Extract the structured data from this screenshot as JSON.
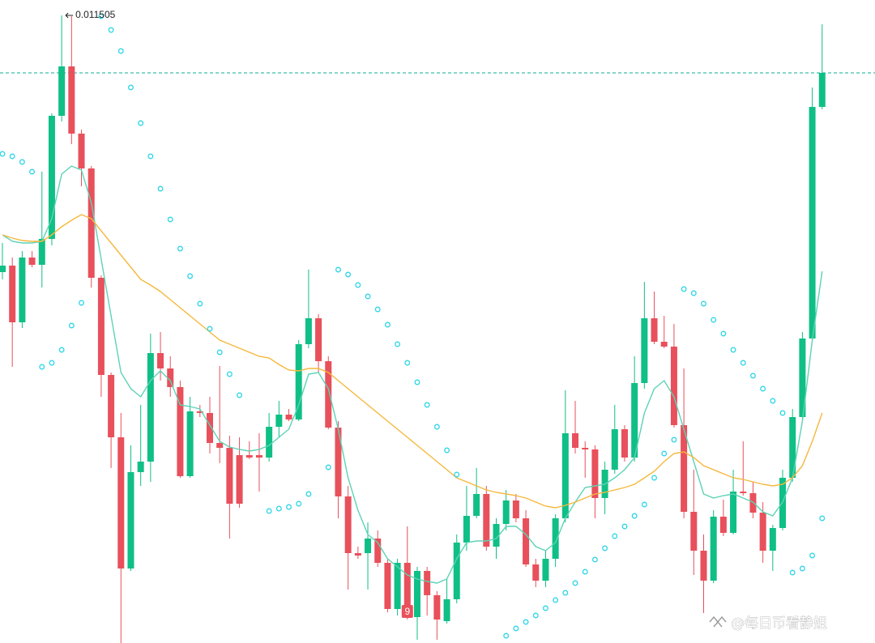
{
  "chart_data": {
    "type": "candlestick",
    "up_color": "#0fbf86",
    "down_color": "#e8505b",
    "ylim": [
      0.00763,
      0.0116
    ],
    "open": [
      0.00992,
      0.00996,
      0.00961,
      0.01001,
      0.009965,
      0.010125,
      0.010885,
      0.01119,
      0.010775,
      0.01056,
      0.009885,
      0.009285,
      0.0089,
      0.00809,
      0.008685,
      0.00875,
      0.00942,
      0.009325,
      0.00921,
      0.00866,
      0.00906,
      0.00905,
      0.008865,
      0.008835,
      0.00879,
      0.00879,
      0.00879,
      0.008775,
      0.008965,
      0.00904,
      0.00901,
      0.009475,
      0.009635,
      0.00937,
      0.00896,
      0.008535,
      0.008185,
      0.008185,
      0.008275,
      0.008125,
      0.00784,
      0.008125,
      0.00779,
      0.008075,
      0.007925,
      0.007765,
      0.0079,
      0.00825,
      0.008415,
      0.00855,
      0.008225,
      0.008365,
      0.00851,
      0.0084,
      0.008115,
      0.008015,
      0.00815,
      0.0084,
      0.008925,
      0.008835,
      0.008825,
      0.008525,
      0.0087,
      0.00895,
      0.008775,
      0.009235,
      0.009635,
      0.00949,
      0.00946,
      0.008975,
      0.00844,
      0.0082,
      0.008015,
      0.00841,
      0.00831,
      0.008565,
      0.008555,
      0.008435,
      0.0082,
      0.00834,
      0.00865,
      0.009025,
      0.00951,
      0.01094
    ],
    "high": [
      0.0101,
      0.01001,
      0.01005,
      0.01005,
      0.01054,
      0.0109,
      0.011505,
      0.0115,
      0.0108,
      0.010575,
      0.0099,
      0.0093,
      0.00905,
      0.00885,
      0.0091,
      0.00954,
      0.00955,
      0.0094,
      0.00925,
      0.00915,
      0.0091,
      0.00915,
      0.00934,
      0.00891,
      0.0089,
      0.008875,
      0.008925,
      0.00905,
      0.009125,
      0.009075,
      0.0095,
      0.009935,
      0.00966,
      0.0094,
      0.009,
      0.0086,
      0.008225,
      0.008375,
      0.008325,
      0.00815,
      0.00815,
      0.00835,
      0.0081,
      0.0081,
      0.00795,
      0.008025,
      0.0083,
      0.0086,
      0.00871,
      0.0086,
      0.0084,
      0.008575,
      0.00855,
      0.00845,
      0.00815,
      0.0082,
      0.008425,
      0.00919,
      0.009125,
      0.008875,
      0.00885,
      0.00875,
      0.0091,
      0.008975,
      0.0094,
      0.00986,
      0.0098,
      0.00965,
      0.0096,
      0.009325,
      0.0087,
      0.0083,
      0.00845,
      0.008515,
      0.0087,
      0.008875,
      0.008625,
      0.0085,
      0.00836,
      0.0087,
      0.009075,
      0.00955,
      0.01106,
      0.01145
    ],
    "low": [
      0.009875,
      0.009335,
      0.009575,
      0.00995,
      0.009825,
      0.010085,
      0.01085,
      0.01071,
      0.01045,
      0.009825,
      0.00915,
      0.00871,
      0.00763,
      0.008075,
      0.0086,
      0.008625,
      0.00925,
      0.00915,
      0.00865,
      0.00865,
      0.009025,
      0.0088,
      0.00874,
      0.008275,
      0.008465,
      0.008765,
      0.008565,
      0.00875,
      0.0089,
      0.009,
      0.009,
      0.00945,
      0.0093,
      0.00895,
      0.0084,
      0.00796,
      0.00815,
      0.00796,
      0.0081,
      0.00782,
      0.0078,
      0.007775,
      0.00765,
      0.0078,
      0.00765,
      0.00775,
      0.007875,
      0.0082,
      0.0084,
      0.0082,
      0.00815,
      0.008325,
      0.008375,
      0.0081,
      0.007975,
      0.007975,
      0.0081,
      0.008375,
      0.0088,
      0.00865,
      0.0084,
      0.008425,
      0.008675,
      0.00875,
      0.00875,
      0.0092,
      0.009475,
      0.00945,
      0.00896,
      0.0084,
      0.00805,
      0.007815,
      0.008,
      0.00829,
      0.0083,
      0.00854,
      0.0084,
      0.008125,
      0.008075,
      0.008325,
      0.008625,
      0.009,
      0.0095,
      0.010925
    ],
    "close": [
      0.00996,
      0.00961,
      0.01001,
      0.009965,
      0.010125,
      0.010885,
      0.01119,
      0.010775,
      0.01056,
      0.009885,
      0.009285,
      0.0089,
      0.00809,
      0.008685,
      0.00875,
      0.00942,
      0.009325,
      0.00921,
      0.00866,
      0.00906,
      0.00905,
      0.008865,
      0.008835,
      0.00849,
      0.00849,
      0.008775,
      0.008775,
      0.008965,
      0.00904,
      0.00901,
      0.009475,
      0.009635,
      0.00937,
      0.00896,
      0.008535,
      0.008185,
      0.00817,
      0.008275,
      0.008125,
      0.00784,
      0.008125,
      0.00779,
      0.008075,
      0.007925,
      0.007775,
      0.0079,
      0.00825,
      0.008415,
      0.00855,
      0.008225,
      0.008365,
      0.00851,
      0.0084,
      0.008115,
      0.008015,
      0.00815,
      0.0084,
      0.008925,
      0.008835,
      0.008825,
      0.008525,
      0.0087,
      0.00895,
      0.008775,
      0.009235,
      0.009635,
      0.00949,
      0.00946,
      0.008975,
      0.00844,
      0.0082,
      0.008015,
      0.00841,
      0.00831,
      0.008565,
      0.008555,
      0.008435,
      0.0082,
      0.00834,
      0.00865,
      0.009025,
      0.00951,
      0.01094,
      0.01115
    ],
    "lines": [
      {
        "color": "#5dd3b6",
        "values": [
          0.01015,
          0.01011,
          0.0101,
          0.0101,
          0.01011,
          0.01025,
          0.010525,
          0.010575,
          0.01055,
          0.01035,
          0.01,
          0.00965,
          0.0093,
          0.0092,
          0.00915,
          0.00925,
          0.00931,
          0.00925,
          0.0091,
          0.00909,
          0.009075,
          0.008975,
          0.008875,
          0.00884,
          0.008825,
          0.008815,
          0.008825,
          0.00885,
          0.0089,
          0.00895,
          0.0091,
          0.00929,
          0.0093,
          0.0092,
          0.00895,
          0.00865,
          0.00845,
          0.0083,
          0.00825,
          0.00815,
          0.0081,
          0.00805,
          0.008025,
          0.00801,
          0.008,
          0.008025,
          0.00815,
          0.00825,
          0.00826,
          0.00826,
          0.008275,
          0.00835,
          0.00835,
          0.0083,
          0.008225,
          0.0082,
          0.00825,
          0.0084,
          0.0085,
          0.00859,
          0.0086,
          0.00861,
          0.00865,
          0.0087,
          0.008775,
          0.00905,
          0.0092,
          0.00925,
          0.00915,
          0.00895,
          0.00875,
          0.00855,
          0.008525,
          0.00854,
          0.00855,
          0.008525,
          0.0085,
          0.00844,
          0.008415,
          0.0085,
          0.00865,
          0.009,
          0.0095,
          0.009925
        ]
      },
      {
        "color": "#f5b83d",
        "values": [
          0.01015,
          0.01013,
          0.010115,
          0.01011,
          0.01011,
          0.01015,
          0.0102,
          0.01024,
          0.010275,
          0.01025,
          0.010175,
          0.0101,
          0.010025,
          0.00995,
          0.009875,
          0.00984,
          0.0098,
          0.00975,
          0.0097,
          0.00965,
          0.0096,
          0.00955,
          0.0095,
          0.009475,
          0.00945,
          0.009425,
          0.0094,
          0.00939,
          0.00935,
          0.009315,
          0.00931,
          0.009325,
          0.009325,
          0.0093,
          0.00925,
          0.0092,
          0.00915,
          0.0091,
          0.00905,
          0.009,
          0.00895,
          0.0089,
          0.00885,
          0.0088,
          0.00875,
          0.0087,
          0.00865,
          0.008625,
          0.0086,
          0.008575,
          0.00856,
          0.00855,
          0.00854,
          0.008525,
          0.0085,
          0.008475,
          0.008465,
          0.00848,
          0.0085,
          0.008525,
          0.00855,
          0.00856,
          0.008575,
          0.00859,
          0.00861,
          0.00865,
          0.00869,
          0.00875,
          0.0088,
          0.00881,
          0.008775,
          0.008725,
          0.0087,
          0.008675,
          0.00865,
          0.00864,
          0.008625,
          0.00861,
          0.0086,
          0.00861,
          0.00865,
          0.008725,
          0.008875,
          0.00905
        ]
      }
    ],
    "sar": {
      "color": "#2fd6e8",
      "values": [
        0.01065,
        0.010635,
        0.0106,
        0.01054,
        0.009335,
        0.00936,
        0.00944,
        0.00959,
        0.00973,
        null,
        0.0115,
        0.011415,
        0.011285,
        0.01106,
        0.01084,
        0.010635,
        0.010435,
        0.010245,
        0.010065,
        0.009895,
        0.009725,
        0.00957,
        0.009425,
        0.00929,
        0.00916,
        null,
        null,
        0.008445,
        0.00846,
        0.00847,
        0.00849,
        0.00855,
        null,
        0.008715,
        0.009935,
        0.009905,
        0.00984,
        0.00977,
        0.00969,
        0.009595,
        0.009475,
        0.00936,
        0.00924,
        0.0091,
        0.008965,
        0.00882,
        0.00867,
        null,
        null,
        null,
        null,
        0.007675,
        0.00772,
        0.00776,
        0.0078,
        0.007845,
        0.007895,
        0.00794,
        0.008,
        0.00807,
        0.008145,
        0.008215,
        0.00829,
        0.00835,
        0.008415,
        0.008485,
        0.00865,
        0.0088,
        0.008885,
        0.009815,
        0.00979,
        0.009725,
        0.009625,
        0.00954,
        0.00944,
        0.00936,
        0.00928,
        0.0092,
        0.009125,
        0.00905,
        0.008065,
        0.00809,
        0.00817,
        0.0084
      ]
    },
    "max_label": "0.011505",
    "annotations": [
      "9"
    ],
    "watermark": "@每日币看静姐"
  }
}
